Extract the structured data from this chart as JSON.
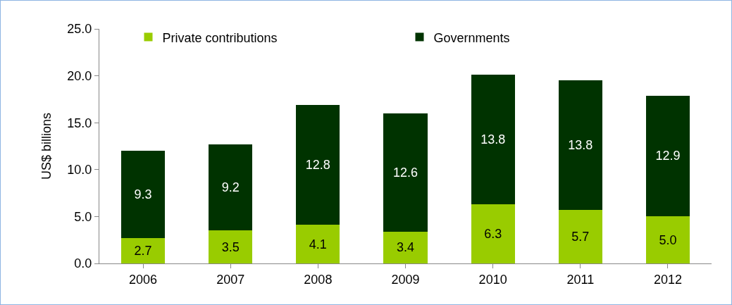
{
  "chart_data": {
    "type": "bar",
    "stacked": true,
    "ylabel": "US$ billions",
    "categories": [
      "2006",
      "2007",
      "2008",
      "2009",
      "2010",
      "2011",
      "2012"
    ],
    "series": [
      {
        "name": "Private contributions",
        "color": "#99cc00",
        "values": [
          2.7,
          3.5,
          4.1,
          3.4,
          6.3,
          5.7,
          5.0
        ],
        "value_labels": [
          "2.7",
          "3.5",
          "4.1",
          "3.4",
          "6.3",
          "5.7",
          "5.0"
        ]
      },
      {
        "name": "Governments",
        "color": "#003300",
        "values": [
          9.3,
          9.2,
          12.8,
          12.6,
          13.8,
          13.8,
          12.9
        ],
        "value_labels": [
          "9.3",
          "9.2",
          "12.8",
          "12.6",
          "13.8",
          "13.8",
          "12.9"
        ]
      }
    ],
    "ylim": [
      0,
      25
    ],
    "yticks": [
      {
        "value": 0,
        "label": "0.0"
      },
      {
        "value": 5,
        "label": "5.0"
      },
      {
        "value": 10,
        "label": "10.0"
      },
      {
        "value": 15,
        "label": "15.0"
      },
      {
        "value": 20,
        "label": "20.0"
      },
      {
        "value": 25,
        "label": "25.0"
      }
    ],
    "grid": false,
    "legend": "top"
  }
}
